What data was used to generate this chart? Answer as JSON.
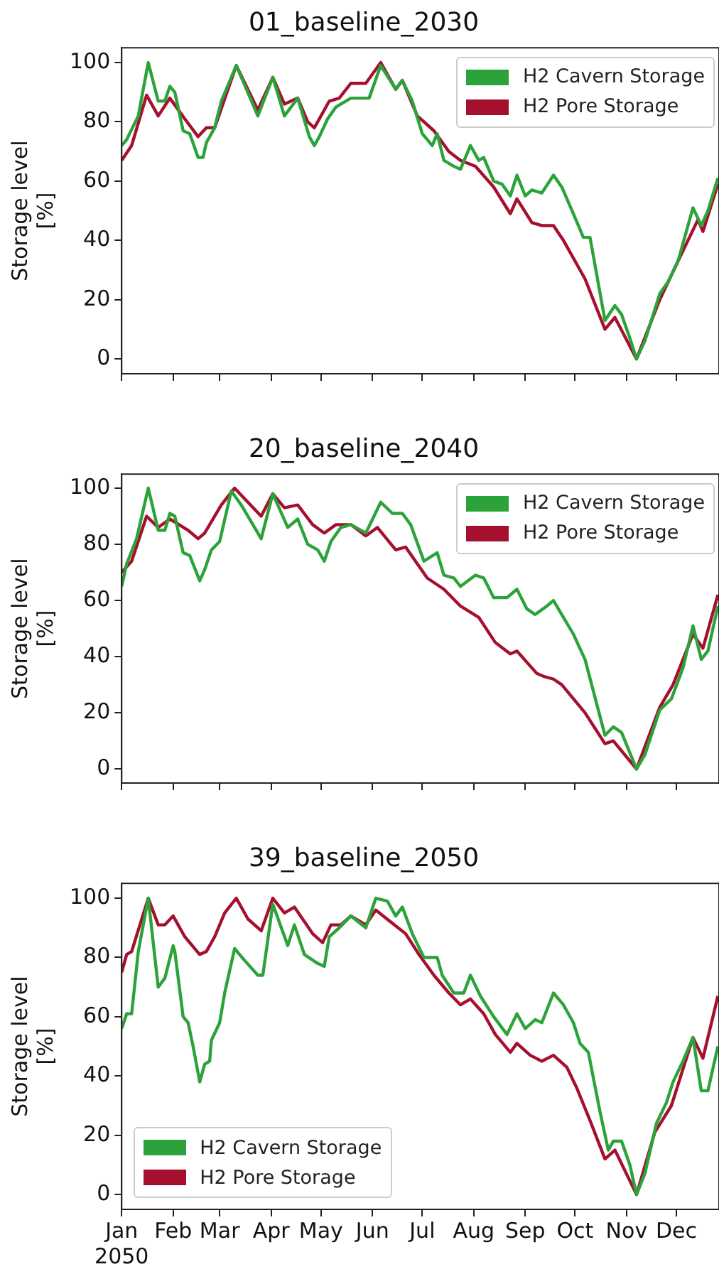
{
  "chart_data": [
    {
      "type": "line",
      "title": "01_baseline_2030",
      "ylabel": "Storage level\n[%]",
      "legend": "top right",
      "tick_labels": "y",
      "xlim": [
        "2050-01-01",
        "2050-12-26T16:00"
      ],
      "ylim": [
        -5,
        105
      ],
      "yticks": [
        0,
        20,
        40,
        60,
        80,
        100
      ],
      "xticks": [
        {
          "value": "2050-01-01",
          "label": null
        },
        {
          "value": "2050-02-01",
          "label": null
        },
        {
          "value": "2050-03-01",
          "label": null
        },
        {
          "value": "2050-04-01",
          "label": null
        },
        {
          "value": "2050-05-01",
          "label": null
        },
        {
          "value": "2050-06-01",
          "label": null
        },
        {
          "value": "2050-07-01",
          "label": null
        },
        {
          "value": "2050-08-01",
          "label": null
        },
        {
          "value": "2050-09-01",
          "label": null
        },
        {
          "value": "2050-10-01",
          "label": null
        },
        {
          "value": "2050-11-01",
          "label": null
        },
        {
          "value": "2050-12-01",
          "label": null
        }
      ],
      "series": [
        {
          "name": "H2 Cavern Storage",
          "color": "#2ca33a",
          "x": [
            "2050-01-01",
            "2050-01-04",
            "2050-01-11",
            "2050-01-17",
            "2050-01-23",
            "2050-01-27",
            "2050-01-30",
            "2050-02-02",
            "2050-02-07",
            "2050-02-11",
            "2050-02-16",
            "2050-02-19",
            "2050-02-21",
            "2050-02-26",
            "2050-03-02",
            "2050-03-11",
            "2050-03-24",
            "2050-04-02",
            "2050-04-09",
            "2050-04-17",
            "2050-04-24",
            "2050-04-27",
            "2050-04-30",
            "2050-05-05",
            "2050-05-10",
            "2050-05-19",
            "2050-05-30",
            "2050-06-06",
            "2050-06-15",
            "2050-06-19",
            "2050-06-25",
            "2050-07-01",
            "2050-07-07",
            "2050-07-10",
            "2050-07-14",
            "2050-07-20",
            "2050-07-24",
            "2050-07-30",
            "2050-08-04",
            "2050-08-07",
            "2050-08-13",
            "2050-08-18",
            "2050-08-23",
            "2050-08-27",
            "2050-09-01",
            "2050-09-05",
            "2050-09-11",
            "2050-09-18",
            "2050-09-23",
            "2050-09-30",
            "2050-10-06",
            "2050-10-10",
            "2050-10-19",
            "2050-10-25",
            "2050-10-29",
            "2050-11-03",
            "2050-11-07",
            "2050-11-12",
            "2050-11-21",
            "2050-11-26",
            "2050-12-02",
            "2050-12-11",
            "2050-12-16",
            "2050-12-20",
            "2050-12-26"
          ],
          "values": [
            72,
            74,
            82,
            100,
            87,
            87,
            92,
            90,
            77,
            76,
            68,
            68,
            73,
            78,
            87,
            99,
            82,
            95,
            82,
            88,
            75,
            72,
            75,
            81,
            85,
            88,
            88,
            99,
            91,
            94,
            87,
            76,
            72,
            76,
            67,
            65,
            64,
            72,
            67,
            68,
            60,
            59,
            55,
            62,
            55,
            57,
            56,
            62,
            58,
            49,
            41,
            41,
            13,
            18,
            15,
            7,
            0,
            6,
            22,
            26,
            33,
            51,
            45,
            50,
            61
          ]
        },
        {
          "name": "H2 Pore Storage",
          "color": "#a6102f",
          "x": [
            "2050-01-01",
            "2050-01-07",
            "2050-01-16",
            "2050-01-23",
            "2050-01-30",
            "2050-02-08",
            "2050-02-16",
            "2050-02-21",
            "2050-02-26",
            "2050-03-11",
            "2050-03-24",
            "2050-04-02",
            "2050-04-09",
            "2050-04-17",
            "2050-04-23",
            "2050-04-27",
            "2050-05-06",
            "2050-05-12",
            "2050-05-19",
            "2050-05-28",
            "2050-06-06",
            "2050-06-15",
            "2050-06-19",
            "2050-06-28",
            "2050-07-08",
            "2050-07-17",
            "2050-07-24",
            "2050-08-02",
            "2050-08-13",
            "2050-08-23",
            "2050-08-27",
            "2050-09-05",
            "2050-09-11",
            "2050-09-18",
            "2050-09-24",
            "2050-10-07",
            "2050-10-19",
            "2050-10-25",
            "2050-11-07",
            "2050-11-21",
            "2050-12-02",
            "2050-12-14",
            "2050-12-17",
            "2050-12-26"
          ],
          "values": [
            67,
            72,
            89,
            82,
            88,
            81,
            75,
            78,
            78,
            99,
            84,
            95,
            86,
            88,
            80,
            78,
            87,
            88,
            93,
            93,
            100,
            91,
            94,
            82,
            77,
            70,
            67,
            65,
            58,
            49,
            54,
            46,
            45,
            45,
            40,
            27,
            10,
            14,
            0,
            20,
            33,
            47,
            43,
            59
          ]
        }
      ]
    },
    {
      "type": "line",
      "title": "20_baseline_2040",
      "ylabel": "Storage level\n[%]",
      "legend": "top right",
      "tick_labels": "y",
      "xlim": [
        "2050-01-01",
        "2050-12-26T16:00"
      ],
      "ylim": [
        -5,
        105
      ],
      "yticks": [
        0,
        20,
        40,
        60,
        80,
        100
      ],
      "xticks": [
        {
          "value": "2050-01-01",
          "label": null
        },
        {
          "value": "2050-02-01",
          "label": null
        },
        {
          "value": "2050-03-01",
          "label": null
        },
        {
          "value": "2050-04-01",
          "label": null
        },
        {
          "value": "2050-05-01",
          "label": null
        },
        {
          "value": "2050-06-01",
          "label": null
        },
        {
          "value": "2050-07-01",
          "label": null
        },
        {
          "value": "2050-08-01",
          "label": null
        },
        {
          "value": "2050-09-01",
          "label": null
        },
        {
          "value": "2050-10-01",
          "label": null
        },
        {
          "value": "2050-11-01",
          "label": null
        },
        {
          "value": "2050-12-01",
          "label": null
        }
      ],
      "series": [
        {
          "name": "H2 Cavern Storage",
          "color": "#2ca33a",
          "x": [
            "2050-01-01",
            "2050-01-04",
            "2050-01-10",
            "2050-01-17",
            "2050-01-23",
            "2050-01-27",
            "2050-01-30",
            "2050-02-02",
            "2050-02-07",
            "2050-02-11",
            "2050-02-17",
            "2050-02-20",
            "2050-02-24",
            "2050-03-01",
            "2050-03-08",
            "2050-03-14",
            "2050-03-26",
            "2050-04-02",
            "2050-04-11",
            "2050-04-17",
            "2050-04-23",
            "2050-04-29",
            "2050-05-03",
            "2050-05-07",
            "2050-05-13",
            "2050-05-19",
            "2050-05-28",
            "2050-06-06",
            "2050-06-13",
            "2050-06-19",
            "2050-06-24",
            "2050-07-02",
            "2050-07-10",
            "2050-07-14",
            "2050-07-20",
            "2050-07-24",
            "2050-08-02",
            "2050-08-07",
            "2050-08-13",
            "2050-08-21",
            "2050-08-27",
            "2050-09-02",
            "2050-09-07",
            "2050-09-14",
            "2050-09-18",
            "2050-09-24",
            "2050-09-30",
            "2050-10-07",
            "2050-10-19",
            "2050-10-24",
            "2050-10-29",
            "2050-11-07",
            "2050-11-12",
            "2050-11-21",
            "2050-11-28",
            "2050-12-05",
            "2050-12-11",
            "2050-12-16",
            "2050-12-20",
            "2050-12-26"
          ],
          "values": [
            65,
            73,
            82,
            100,
            85,
            85,
            91,
            90,
            77,
            76,
            67,
            71,
            78,
            81,
            99,
            94,
            82,
            98,
            86,
            89,
            80,
            78,
            74,
            81,
            86,
            87,
            84,
            95,
            91,
            91,
            87,
            74,
            77,
            69,
            68,
            65,
            69,
            68,
            61,
            61,
            64,
            57,
            55,
            58,
            60,
            54,
            48,
            39,
            12,
            15,
            13,
            0,
            5,
            21,
            25,
            36,
            51,
            39,
            42,
            58
          ]
        },
        {
          "name": "H2 Pore Storage",
          "color": "#a6102f",
          "x": [
            "2050-01-01",
            "2050-01-07",
            "2050-01-16",
            "2050-01-23",
            "2050-01-30",
            "2050-02-10",
            "2050-02-16",
            "2050-02-20",
            "2050-02-26",
            "2050-03-02",
            "2050-03-10",
            "2050-03-26",
            "2050-04-02",
            "2050-04-09",
            "2050-04-17",
            "2050-04-26",
            "2050-05-03",
            "2050-05-10",
            "2050-05-19",
            "2050-05-28",
            "2050-06-04",
            "2050-06-15",
            "2050-06-21",
            "2050-07-04",
            "2050-07-14",
            "2050-07-24",
            "2050-08-04",
            "2050-08-14",
            "2050-08-23",
            "2050-08-27",
            "2050-09-08",
            "2050-09-12",
            "2050-09-18",
            "2050-09-23",
            "2050-10-07",
            "2050-10-19",
            "2050-10-24",
            "2050-11-07",
            "2050-11-21",
            "2050-11-29",
            "2050-12-11",
            "2050-12-17",
            "2050-12-26"
          ],
          "values": [
            70,
            74,
            90,
            86,
            89,
            85,
            82,
            84,
            90,
            94,
            100,
            90,
            98,
            93,
            94,
            87,
            84,
            87,
            87,
            83,
            86,
            78,
            79,
            68,
            64,
            58,
            54,
            45,
            41,
            42,
            34,
            33,
            32,
            30,
            20,
            9,
            10,
            0,
            22,
            30,
            48,
            43,
            62
          ]
        }
      ]
    },
    {
      "type": "line",
      "title": "39_baseline_2050",
      "ylabel": "Storage level\n[%]",
      "legend": "bottom left",
      "xlim": [
        "2050-01-01",
        "2050-12-26T16:00"
      ],
      "ylim": [
        -5,
        105
      ],
      "yticks": [
        0,
        20,
        40,
        60,
        80,
        100
      ],
      "xticks": [
        {
          "value": "2050-01-01",
          "label": "Jan\n2050"
        },
        {
          "value": "2050-02-01",
          "label": "Feb"
        },
        {
          "value": "2050-03-01",
          "label": "Mar"
        },
        {
          "value": "2050-04-01",
          "label": "Apr"
        },
        {
          "value": "2050-05-01",
          "label": "May"
        },
        {
          "value": "2050-06-01",
          "label": "Jun"
        },
        {
          "value": "2050-07-01",
          "label": "Jul"
        },
        {
          "value": "2050-08-01",
          "label": "Aug"
        },
        {
          "value": "2050-09-01",
          "label": "Sep"
        },
        {
          "value": "2050-10-01",
          "label": "Oct"
        },
        {
          "value": "2050-11-01",
          "label": "Nov"
        },
        {
          "value": "2050-12-01",
          "label": "Dec"
        }
      ],
      "series": [
        {
          "name": "H2 Cavern Storage",
          "color": "#2ca33a",
          "x": [
            "2050-01-01",
            "2050-01-04",
            "2050-01-07",
            "2050-01-11",
            "2050-01-17",
            "2050-01-23",
            "2050-01-27",
            "2050-02-01",
            "2050-02-02",
            "2050-02-07",
            "2050-02-10",
            "2050-02-13",
            "2050-02-17",
            "2050-02-20",
            "2050-02-23",
            "2050-02-24",
            "2050-03-01",
            "2050-03-04",
            "2050-03-10",
            "2050-03-16",
            "2050-03-24",
            "2050-03-27",
            "2050-04-02",
            "2050-04-11",
            "2050-04-15",
            "2050-04-21",
            "2050-04-29",
            "2050-05-03",
            "2050-05-06",
            "2050-05-12",
            "2050-05-19",
            "2050-05-28",
            "2050-06-03",
            "2050-06-10",
            "2050-06-15",
            "2050-06-19",
            "2050-06-25",
            "2050-07-02",
            "2050-07-10",
            "2050-07-13",
            "2050-07-20",
            "2050-07-26",
            "2050-07-30",
            "2050-08-05",
            "2050-08-13",
            "2050-08-21",
            "2050-08-27",
            "2050-09-01",
            "2050-09-07",
            "2050-09-11",
            "2050-09-18",
            "2050-09-24",
            "2050-09-30",
            "2050-10-04",
            "2050-10-09",
            "2050-10-16",
            "2050-10-21",
            "2050-10-24",
            "2050-10-29",
            "2050-11-03",
            "2050-11-07",
            "2050-11-12",
            "2050-11-19",
            "2050-11-25",
            "2050-11-29",
            "2050-12-05",
            "2050-12-11",
            "2050-12-16",
            "2050-12-20",
            "2050-12-26"
          ],
          "values": [
            56,
            61,
            61,
            82,
            100,
            70,
            73,
            84,
            82,
            60,
            58,
            50,
            38,
            44,
            45,
            52,
            58,
            68,
            83,
            79,
            74,
            74,
            98,
            84,
            91,
            81,
            78,
            77,
            87,
            90,
            94,
            90,
            100,
            99,
            94,
            97,
            88,
            80,
            80,
            74,
            68,
            68,
            74,
            67,
            60,
            54,
            61,
            56,
            59,
            58,
            68,
            64,
            58,
            51,
            48,
            28,
            15,
            18,
            18,
            10,
            0,
            7,
            24,
            31,
            38,
            45,
            53,
            35,
            35,
            50
          ]
        },
        {
          "name": "H2 Pore Storage",
          "color": "#a6102f",
          "x": [
            "2050-01-01",
            "2050-01-04",
            "2050-01-07",
            "2050-01-17",
            "2050-01-23",
            "2050-01-27",
            "2050-02-01",
            "2050-02-08",
            "2050-02-17",
            "2050-02-21",
            "2050-02-26",
            "2050-03-04",
            "2050-03-11",
            "2050-03-18",
            "2050-03-26",
            "2050-04-02",
            "2050-04-09",
            "2050-04-15",
            "2050-04-26",
            "2050-05-02",
            "2050-05-07",
            "2050-05-13",
            "2050-05-19",
            "2050-05-28",
            "2050-06-03",
            "2050-06-12",
            "2050-06-21",
            "2050-06-29",
            "2050-07-08",
            "2050-07-17",
            "2050-07-24",
            "2050-07-30",
            "2050-08-07",
            "2050-08-14",
            "2050-08-23",
            "2050-08-27",
            "2050-09-04",
            "2050-09-11",
            "2050-09-18",
            "2050-09-26",
            "2050-10-02",
            "2050-10-10",
            "2050-10-19",
            "2050-10-25",
            "2050-11-07",
            "2050-11-18",
            "2050-11-28",
            "2050-12-11",
            "2050-12-17",
            "2050-12-26"
          ],
          "values": [
            75,
            81,
            82,
            100,
            91,
            91,
            94,
            87,
            81,
            82,
            87,
            95,
            100,
            93,
            89,
            100,
            95,
            97,
            88,
            85,
            91,
            91,
            94,
            91,
            96,
            92,
            88,
            81,
            74,
            68,
            64,
            66,
            61,
            54,
            48,
            51,
            47,
            45,
            47,
            43,
            36,
            25,
            12,
            15,
            0,
            21,
            30,
            53,
            46,
            67
          ]
        }
      ]
    }
  ]
}
